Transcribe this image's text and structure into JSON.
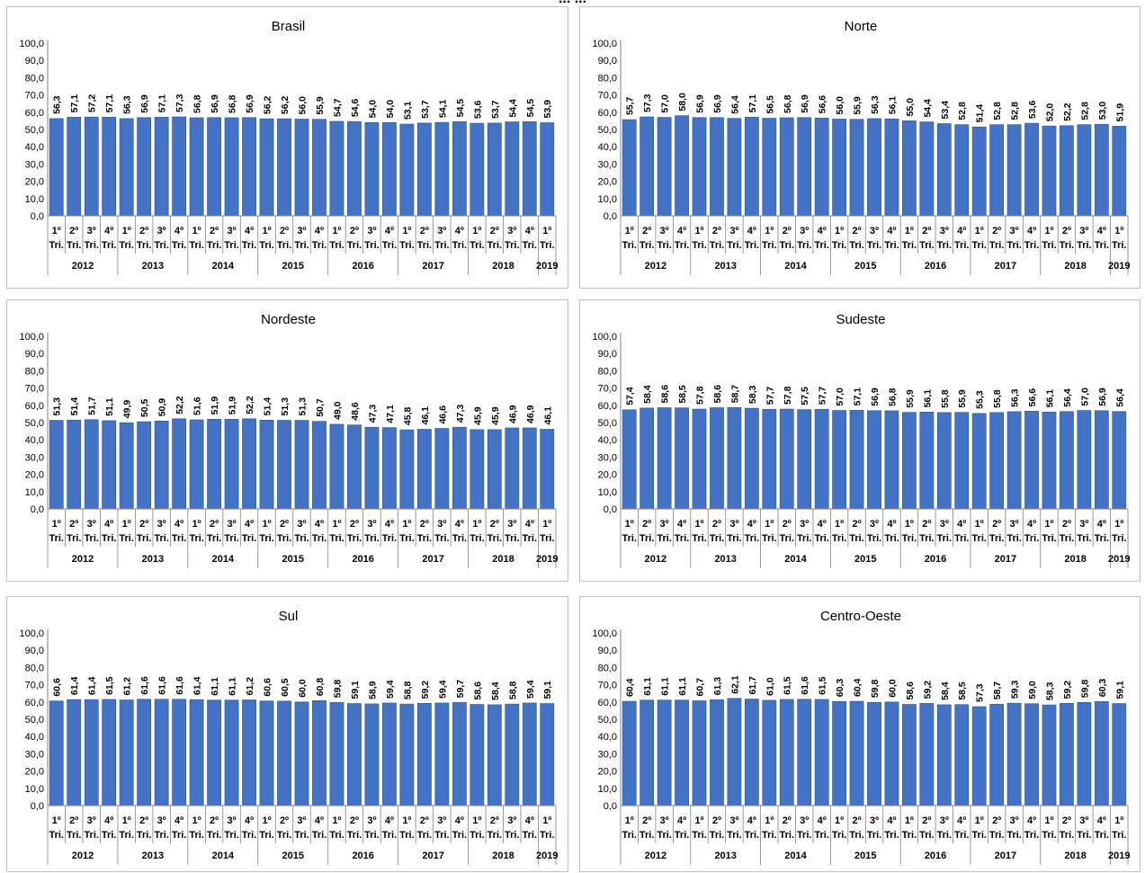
{
  "page_title": "... ...",
  "x_axis": {
    "quarter_labels": [
      "1º",
      "2º",
      "3º",
      "4º",
      "1º",
      "2º",
      "3º",
      "4º",
      "1º",
      "2º",
      "3º",
      "4º",
      "1º",
      "2º",
      "3º",
      "4º",
      "1º",
      "2º",
      "3º",
      "4º",
      "1º",
      "2º",
      "3º",
      "4º",
      "1º",
      "2º",
      "3º",
      "4º",
      "1º"
    ],
    "quarter_suffix": "Tri.",
    "years": [
      {
        "label": "2012",
        "count": 4
      },
      {
        "label": "2013",
        "count": 4
      },
      {
        "label": "2014",
        "count": 4
      },
      {
        "label": "2015",
        "count": 4
      },
      {
        "label": "2016",
        "count": 4
      },
      {
        "label": "2017",
        "count": 4
      },
      {
        "label": "2018",
        "count": 4
      },
      {
        "label": "2019",
        "count": 1
      }
    ]
  },
  "y_axis": {
    "ylim": [
      0,
      100
    ],
    "ticks": [
      "0,0",
      "10,0",
      "20,0",
      "30,0",
      "40,0",
      "50,0",
      "60,0",
      "70,0",
      "80,0",
      "90,0",
      "100,0"
    ]
  },
  "colors": {
    "bar": "#4472c4",
    "bar_edge": "#2f528f",
    "axis": "#808080"
  },
  "chart_data": [
    {
      "type": "bar",
      "title": "Brasil",
      "values": [
        56.3,
        57.1,
        57.2,
        57.1,
        56.3,
        56.9,
        57.1,
        57.3,
        56.8,
        56.9,
        56.8,
        56.9,
        56.2,
        56.2,
        56.0,
        55.9,
        54.7,
        54.6,
        54.0,
        54.0,
        53.1,
        53.7,
        54.1,
        54.5,
        53.6,
        53.7,
        54.4,
        54.5,
        53.9
      ],
      "labels": [
        "56,3",
        "57,1",
        "57,2",
        "57,1",
        "56,3",
        "56,9",
        "57,1",
        "57,3",
        "56,8",
        "56,9",
        "56,8",
        "56,9",
        "56,2",
        "56,2",
        "56,0",
        "55,9",
        "54,7",
        "54,6",
        "54,0",
        "54,0",
        "53,1",
        "53,7",
        "54,1",
        "54,5",
        "53,6",
        "53,7",
        "54,4",
        "54,5",
        "53,9"
      ]
    },
    {
      "type": "bar",
      "title": "Norte",
      "values": [
        55.7,
        57.3,
        57.0,
        58.0,
        56.9,
        56.9,
        56.4,
        57.1,
        56.5,
        56.8,
        56.9,
        56.6,
        56.0,
        55.9,
        56.3,
        56.1,
        55.0,
        54.4,
        53.4,
        52.8,
        51.4,
        52.8,
        52.8,
        53.6,
        52.0,
        52.2,
        52.8,
        53.0,
        51.9
      ],
      "labels": [
        "55,7",
        "57,3",
        "57,0",
        "58,0",
        "56,9",
        "56,9",
        "56,4",
        "57,1",
        "56,5",
        "56,8",
        "56,9",
        "56,6",
        "56,0",
        "55,9",
        "56,3",
        "56,1",
        "55,0",
        "54,4",
        "53,4",
        "52,8",
        "51,4",
        "52,8",
        "52,8",
        "53,6",
        "52,0",
        "52,2",
        "52,8",
        "53,0",
        "51,9"
      ]
    },
    {
      "type": "bar",
      "title": "Nordeste",
      "values": [
        51.3,
        51.4,
        51.7,
        51.1,
        49.9,
        50.5,
        50.9,
        52.2,
        51.6,
        51.9,
        51.9,
        52.2,
        51.4,
        51.3,
        51.3,
        50.7,
        49.0,
        48.6,
        47.3,
        47.1,
        45.8,
        46.1,
        46.6,
        47.3,
        45.9,
        45.9,
        46.9,
        46.9,
        46.1
      ],
      "labels": [
        "51,3",
        "51,4",
        "51,7",
        "51,1",
        "49,9",
        "50,5",
        "50,9",
        "52,2",
        "51,6",
        "51,9",
        "51,9",
        "52,2",
        "51,4",
        "51,3",
        "51,3",
        "50,7",
        "49,0",
        "48,6",
        "47,3",
        "47,1",
        "45,8",
        "46,1",
        "46,6",
        "47,3",
        "45,9",
        "45,9",
        "46,9",
        "46,9",
        "46,1"
      ]
    },
    {
      "type": "bar",
      "title": "Sudeste",
      "values": [
        57.4,
        58.4,
        58.6,
        58.5,
        57.8,
        58.6,
        58.7,
        58.3,
        57.7,
        57.8,
        57.5,
        57.7,
        57.0,
        57.1,
        56.9,
        56.8,
        55.9,
        56.1,
        55.8,
        55.9,
        55.3,
        55.8,
        56.3,
        56.6,
        56.1,
        56.4,
        57.0,
        56.9,
        56.4
      ],
      "labels": [
        "57,4",
        "58,4",
        "58,6",
        "58,5",
        "57,8",
        "58,6",
        "58,7",
        "58,3",
        "57,7",
        "57,8",
        "57,5",
        "57,7",
        "57,0",
        "57,1",
        "56,9",
        "56,8",
        "55,9",
        "56,1",
        "55,8",
        "55,9",
        "55,3",
        "55,8",
        "56,3",
        "56,6",
        "56,1",
        "56,4",
        "57,0",
        "56,9",
        "56,4"
      ]
    },
    {
      "type": "bar",
      "title": "Sul",
      "values": [
        60.6,
        61.4,
        61.4,
        61.5,
        61.2,
        61.6,
        61.6,
        61.6,
        61.4,
        61.1,
        61.1,
        61.2,
        60.6,
        60.5,
        60.0,
        60.8,
        59.8,
        59.1,
        58.9,
        59.4,
        58.8,
        59.2,
        59.4,
        59.7,
        58.6,
        58.4,
        58.8,
        59.4,
        59.1
      ],
      "labels": [
        "60,6",
        "61,4",
        "61,4",
        "61,5",
        "61,2",
        "61,6",
        "61,6",
        "61,6",
        "61,4",
        "61,1",
        "61,1",
        "61,2",
        "60,6",
        "60,5",
        "60,0",
        "60,8",
        "59,8",
        "59,1",
        "58,9",
        "59,4",
        "58,8",
        "59,2",
        "59,4",
        "59,7",
        "58,6",
        "58,4",
        "58,8",
        "59,4",
        "59,1"
      ]
    },
    {
      "type": "bar",
      "title": "Centro-Oeste",
      "values": [
        60.4,
        61.1,
        61.1,
        61.1,
        60.7,
        61.3,
        62.1,
        61.7,
        61.0,
        61.5,
        61.6,
        61.5,
        60.3,
        60.4,
        59.8,
        60.0,
        58.6,
        59.2,
        58.4,
        58.5,
        57.3,
        58.7,
        59.3,
        59.0,
        58.3,
        59.2,
        59.8,
        60.3,
        59.1
      ],
      "labels": [
        "60,4",
        "61,1",
        "61,1",
        "61,1",
        "60,7",
        "61,3",
        "62,1",
        "61,7",
        "61,0",
        "61,5",
        "61,6",
        "61,5",
        "60,3",
        "60,4",
        "59,8",
        "60,0",
        "58,6",
        "59,2",
        "58,4",
        "58,5",
        "57,3",
        "58,7",
        "59,3",
        "59,0",
        "58,3",
        "59,2",
        "59,8",
        "60,3",
        "59,1"
      ]
    }
  ]
}
